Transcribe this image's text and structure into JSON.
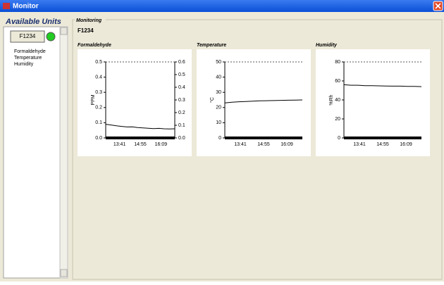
{
  "window": {
    "title": "Monitor"
  },
  "sidebar": {
    "title": "Available Units",
    "unit_button": "F1234",
    "items": [
      "Formaldehyde",
      "Temperature",
      "Humidity"
    ]
  },
  "monitoring": {
    "title": "Monitoring",
    "unit": "F1234"
  },
  "chart_data": [
    {
      "type": "line",
      "title": "Formaldehyde",
      "ylabel": "PPM",
      "ylim": [
        0,
        0.5
      ],
      "yticks": [
        {
          "value": 0,
          "label": "0.0"
        },
        0.1,
        0.2,
        0.3,
        0.4,
        0.5
      ],
      "y2lim": [
        0,
        0.6
      ],
      "y2ticks": [
        {
          "value": 0,
          "label": "0.0"
        },
        0.1,
        0.2,
        0.3,
        0.4,
        0.5,
        0.6
      ],
      "xticks": [
        "13:41",
        "14:55",
        "16:09"
      ],
      "series": [
        {
          "color": "#000000",
          "values": [
            0.09,
            0.085,
            0.08,
            0.076,
            0.072,
            0.073,
            0.068,
            0.066,
            0.064,
            0.061,
            0.063,
            0.06,
            0.059,
            0.06
          ]
        }
      ]
    },
    {
      "type": "line",
      "title": "Temperature",
      "ylabel": "°C",
      "ylim": [
        0,
        50
      ],
      "yticks": [
        0,
        10,
        20,
        30,
        40,
        50
      ],
      "xticks": [
        "13:41",
        "14:55",
        "16:09"
      ],
      "series": [
        {
          "color": "#000000",
          "values": [
            23,
            23.5,
            23.8,
            24,
            24.2,
            24.4,
            24.5,
            24.6,
            24.7,
            24.8,
            24.9,
            25
          ]
        }
      ]
    },
    {
      "type": "line",
      "title": "Humidity",
      "ylabel": "%Rh",
      "ylim": [
        0,
        80
      ],
      "yticks": [
        0,
        20,
        40,
        60,
        80
      ],
      "xticks": [
        "13:41",
        "14:55",
        "16:09"
      ],
      "series": [
        {
          "color": "#000000",
          "values": [
            56,
            55.5,
            55.5,
            55,
            55,
            54.8,
            54.7,
            54.5,
            54.5,
            54.3,
            54.2,
            54
          ]
        }
      ]
    }
  ]
}
